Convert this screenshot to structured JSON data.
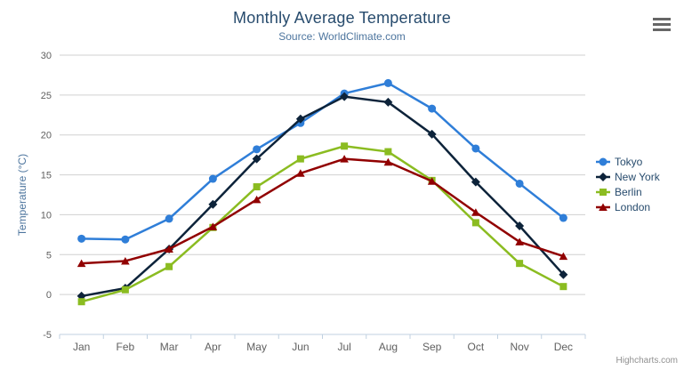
{
  "credits": "Highcharts.com",
  "export_menu": {
    "tooltip": "chart context menu"
  },
  "theme": {
    "title_color": "#274b6d",
    "subtitle_color": "#4d759e",
    "axis_label_color": "#606060",
    "axis_title_color": "#4d759e",
    "grid_color": "#d0d0d0",
    "axis_line_color": "#c0d0e0",
    "legend_text_color": "#274b6d",
    "credits_color": "#909090",
    "export_icon_color": "#666666",
    "background_color": "#ffffff"
  },
  "chart_data": {
    "type": "line",
    "title": "Monthly Average Temperature",
    "subtitle": "Source: WorldClimate.com",
    "categories": [
      "Jan",
      "Feb",
      "Mar",
      "Apr",
      "May",
      "Jun",
      "Jul",
      "Aug",
      "Sep",
      "Oct",
      "Nov",
      "Dec"
    ],
    "series": [
      {
        "name": "Tokyo",
        "color": "#2f7ed8",
        "marker": "circle",
        "values": [
          7.0,
          6.9,
          9.5,
          14.5,
          18.2,
          21.5,
          25.2,
          26.5,
          23.3,
          18.3,
          13.9,
          9.6
        ]
      },
      {
        "name": "New York",
        "color": "#0d233a",
        "marker": "diamond",
        "values": [
          -0.2,
          0.8,
          5.7,
          11.3,
          17.0,
          22.0,
          24.8,
          24.1,
          20.1,
          14.1,
          8.6,
          2.5
        ]
      },
      {
        "name": "Berlin",
        "color": "#8bbc21",
        "marker": "square",
        "values": [
          -0.9,
          0.6,
          3.5,
          8.4,
          13.5,
          17.0,
          18.6,
          17.9,
          14.3,
          9.0,
          3.9,
          1.0
        ]
      },
      {
        "name": "London",
        "color": "#910000",
        "marker": "triangle",
        "values": [
          3.9,
          4.2,
          5.7,
          8.5,
          11.9,
          15.2,
          17.0,
          16.6,
          14.2,
          10.3,
          6.6,
          4.8
        ]
      }
    ],
    "xlabel": "",
    "ylabel": "Temperature (°C)",
    "ylim": [
      -5,
      30
    ],
    "ytick_step": 5,
    "grid": true,
    "legend_position": "right"
  }
}
